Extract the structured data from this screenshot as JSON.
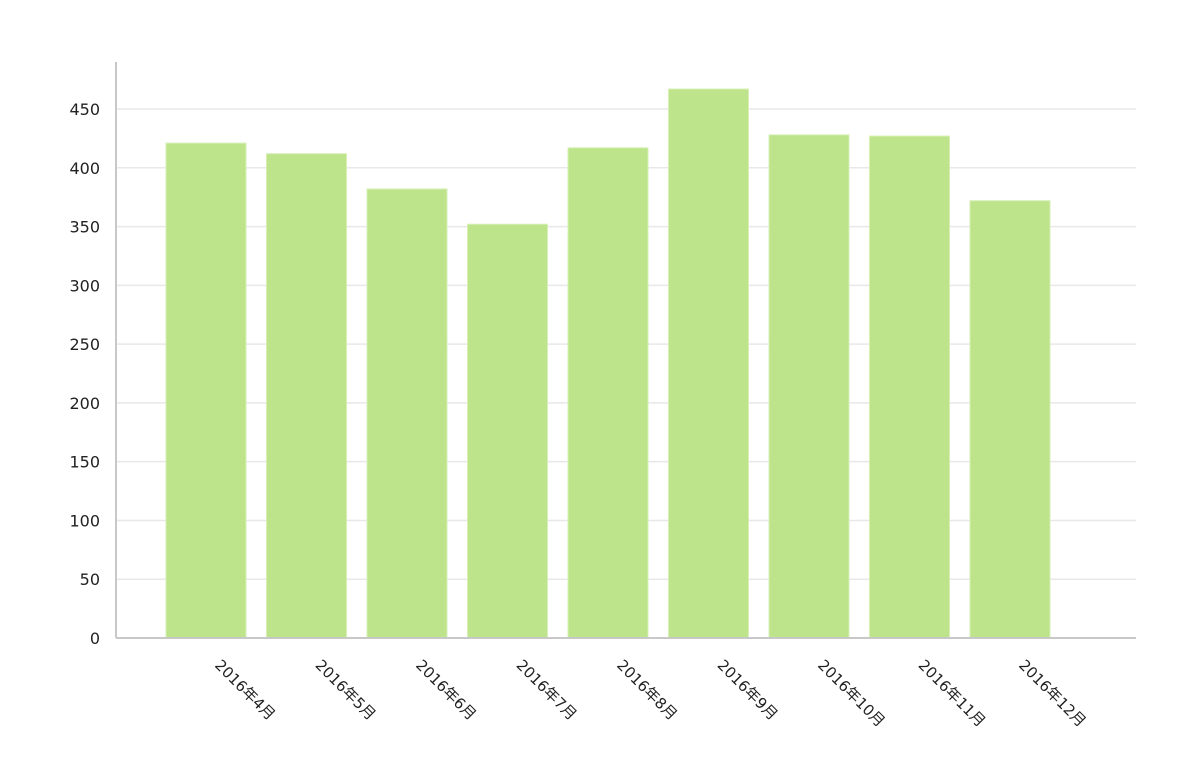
{
  "chart_data": {
    "type": "bar",
    "title": "",
    "xlabel": "",
    "ylabel": "",
    "categories": [
      "2016年4月",
      "2016年5月",
      "2016年6月",
      "2016年7月",
      "2016年8月",
      "2016年9月",
      "2016年10月",
      "2016年11月",
      "2016年12月"
    ],
    "series": [
      {
        "values": [
          421,
          412,
          382,
          352,
          417,
          467,
          428,
          427,
          372
        ]
      }
    ],
    "ylim": [
      0,
      490
    ],
    "yticks": [
      0,
      50,
      100,
      150,
      200,
      250,
      300,
      350,
      400,
      450
    ],
    "grid": true,
    "legend": "none",
    "colors": {
      "bar": "#bde48b",
      "bar_stroke": "#d7efb5",
      "grid": "#e8e8e8",
      "axis": "#c8c8c8",
      "text": "#222222"
    }
  }
}
